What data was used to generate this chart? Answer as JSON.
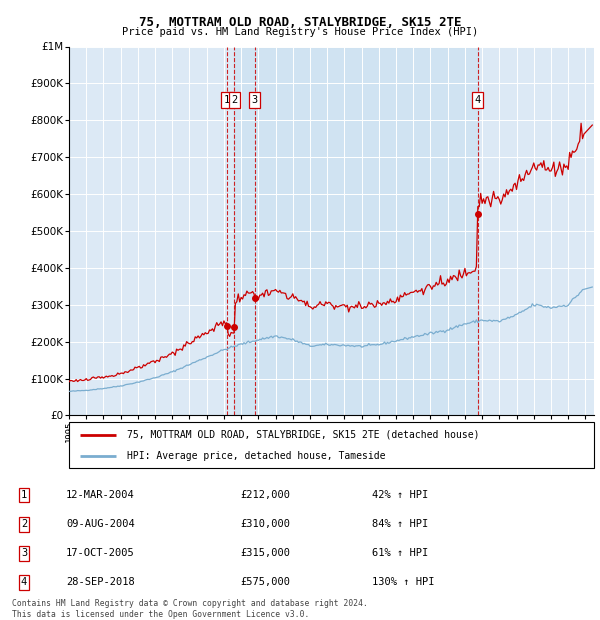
{
  "title": "75, MOTTRAM OLD ROAD, STALYBRIDGE, SK15 2TE",
  "subtitle": "Price paid vs. HM Land Registry's House Price Index (HPI)",
  "ylim": [
    0,
    1000000
  ],
  "yticks": [
    0,
    100000,
    200000,
    300000,
    400000,
    500000,
    600000,
    700000,
    800000,
    900000,
    1000000
  ],
  "xlim_start": 1995.0,
  "xlim_end": 2025.5,
  "background_color": "#dce9f5",
  "sale_dates": [
    2004.19,
    2004.6,
    2005.79,
    2018.74
  ],
  "sale_prices": [
    212000,
    310000,
    315000,
    575000
  ],
  "sale_labels": [
    "1",
    "2",
    "3",
    "4"
  ],
  "legend_line1": "75, MOTTRAM OLD ROAD, STALYBRIDGE, SK15 2TE (detached house)",
  "legend_line2": "HPI: Average price, detached house, Tameside",
  "table_rows": [
    [
      "1",
      "12-MAR-2004",
      "£212,000",
      "42% ↑ HPI"
    ],
    [
      "2",
      "09-AUG-2004",
      "£310,000",
      "84% ↑ HPI"
    ],
    [
      "3",
      "17-OCT-2005",
      "£315,000",
      "61% ↑ HPI"
    ],
    [
      "4",
      "28-SEP-2018",
      "£575,000",
      "130% ↑ HPI"
    ]
  ],
  "footnote": "Contains HM Land Registry data © Crown copyright and database right 2024.\nThis data is licensed under the Open Government Licence v3.0.",
  "red_color": "#cc0000",
  "blue_color": "#7aadcf",
  "shade_color": "#d0e4f0"
}
